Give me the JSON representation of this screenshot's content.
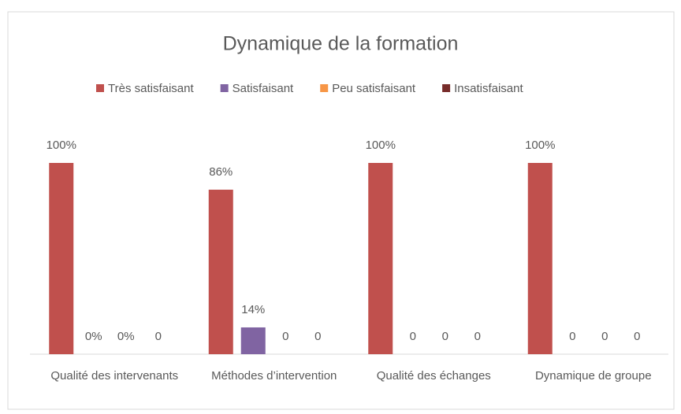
{
  "chart_data": {
    "type": "bar",
    "title": "Dynamique de la formation",
    "categories": [
      "Qualité des intervenants",
      "Méthodes d’intervention",
      "Qualité des échanges",
      "Dynamique de groupe"
    ],
    "series": [
      {
        "name": "Très satisfaisant",
        "color": "#c0504d",
        "values": [
          100,
          86,
          100,
          100
        ],
        "value_labels": [
          "100%",
          "86%",
          "100%",
          "100%"
        ]
      },
      {
        "name": "Satisfaisant",
        "color": "#8064a2",
        "values": [
          0,
          14,
          0,
          0
        ],
        "value_labels": [
          "0%",
          "14%",
          "0",
          "0"
        ]
      },
      {
        "name": "Peu satisfaisant",
        "color": "#f79646",
        "values": [
          0,
          0,
          0,
          0
        ],
        "value_labels": [
          "0%",
          "0",
          "0",
          "0"
        ]
      },
      {
        "name": "Insatisfaisant",
        "color": "#772c2a",
        "values": [
          0,
          0,
          0,
          0
        ]
      }
    ],
    "ylim": [
      0,
      100
    ],
    "legend": "top"
  }
}
